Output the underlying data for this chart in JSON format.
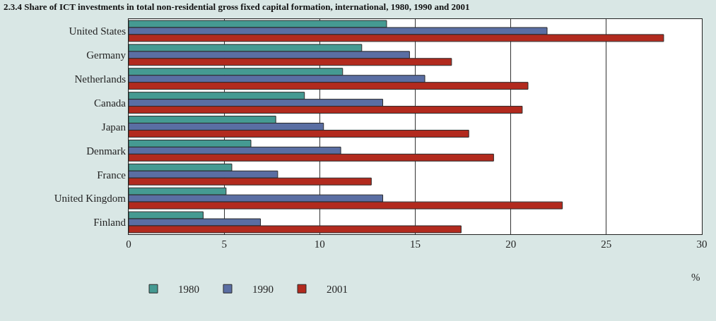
{
  "chart_data": {
    "type": "bar",
    "orientation": "horizontal",
    "title": "2.3.4 Share of ICT investments in total non-residential gross fixed capital formation, international, 1980, 1990 and 2001",
    "xlabel": "%",
    "categories": [
      "United States",
      "Germany",
      "Netherlands",
      "Canada",
      "Japan",
      "Denmark",
      "France",
      "United Kingdom",
      "Finland"
    ],
    "series": [
      {
        "name": "1980",
        "color": "#459a92",
        "values": [
          13.5,
          12.2,
          11.2,
          9.2,
          7.7,
          6.4,
          5.4,
          5.1,
          3.9
        ]
      },
      {
        "name": "1990",
        "color": "#5a6ea3",
        "values": [
          21.9,
          14.7,
          15.5,
          13.3,
          10.2,
          11.1,
          7.8,
          13.3,
          6.9
        ]
      },
      {
        "name": "2001",
        "color": "#b22a1e",
        "values": [
          28.0,
          16.9,
          20.9,
          20.6,
          17.8,
          19.1,
          12.7,
          22.7,
          17.4
        ]
      }
    ],
    "xlim": [
      0,
      30
    ],
    "xticks": [
      0,
      5,
      10,
      15,
      20,
      25,
      30
    ],
    "grid": "x",
    "legend": "bottom"
  }
}
